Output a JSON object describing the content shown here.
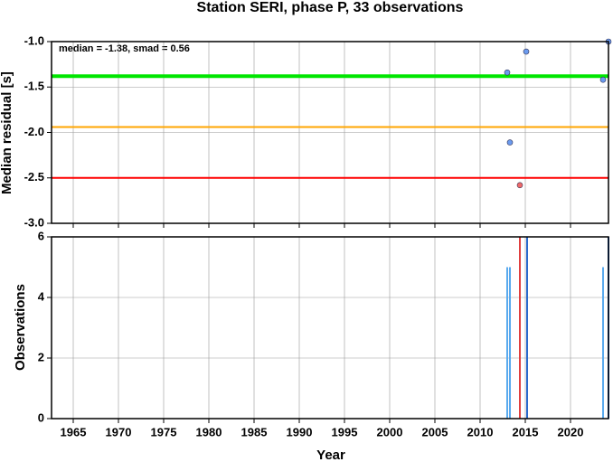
{
  "chart_data": [
    {
      "type": "scatter",
      "title": "Station SERI, phase P, 33 observations",
      "ylabel": "Median residual [s]",
      "annotation": "median = -1.38, smad = 0.56",
      "x": [
        2013.0,
        2015.1,
        2013.3,
        2014.4,
        2023.6,
        2024.2
      ],
      "values": [
        -1.34,
        -1.11,
        -2.11,
        -2.58,
        -1.42,
        -1.0
      ],
      "colors": [
        "#6b9bef",
        "#6b9bef",
        "#6b9bef",
        "#f06a6a",
        "#6b9bef",
        "#6b9bef"
      ],
      "hlines": [
        {
          "value": -1.38,
          "color": "#00e600"
        },
        {
          "value": -1.94,
          "color": "#ffa500"
        },
        {
          "value": -2.5,
          "color": "#ff0000"
        }
      ],
      "xlim": [
        1962.6,
        2024.2
      ],
      "xticks": [
        1965,
        1970,
        1975,
        1980,
        1985,
        1990,
        1995,
        2000,
        2005,
        2010,
        2015,
        2020
      ],
      "ylim": [
        -3,
        -1
      ],
      "yticks": [
        {
          "value": -1,
          "label": "-1.0"
        },
        -1.5,
        {
          "value": -2,
          "label": "-2.0"
        },
        -2.5,
        {
          "value": -3,
          "label": "-3.0"
        }
      ],
      "grid": true
    },
    {
      "type": "bar",
      "ylabel": "Observations",
      "xlabel": "Year",
      "x": [
        2013.0,
        2013.3,
        2014.4,
        2015.2,
        2023.6,
        2024.2
      ],
      "values": [
        5,
        5,
        6,
        6,
        5,
        6
      ],
      "colors": [
        "#5aaaee",
        "#5aaaee",
        "#e04040",
        "#2a6acc",
        "#5aaaee",
        "#2a6acc"
      ],
      "xlim": [
        1962.6,
        2024.2
      ],
      "xticks": [
        1965,
        1970,
        1975,
        1980,
        1985,
        1990,
        1995,
        2000,
        2005,
        2010,
        2015,
        2020
      ],
      "ylim": [
        0,
        6
      ],
      "yticks": [
        0,
        2,
        4,
        6
      ],
      "grid": true
    }
  ]
}
